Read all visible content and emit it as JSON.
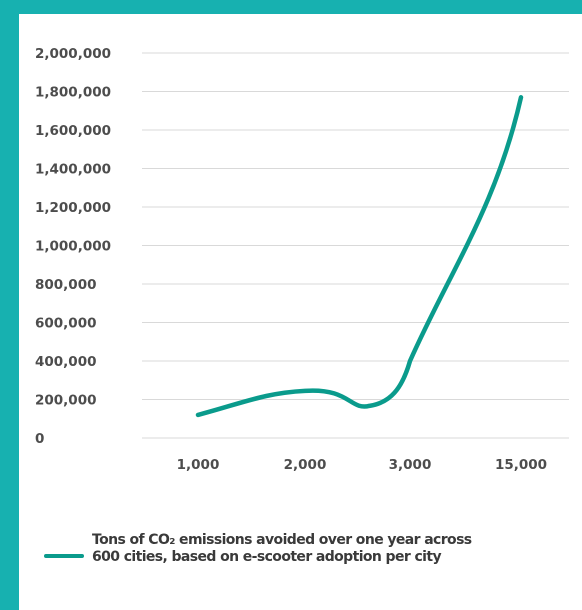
{
  "chart_data": {
    "type": "line",
    "categories": [
      "1,000",
      "2,000",
      "3,000",
      "15,000"
    ],
    "y_ticks": [
      "0",
      "200,000",
      "400,000",
      "600,000",
      "800,000",
      "1,000,000",
      "1,200,000",
      "1,400,000",
      "1,600,000",
      "1,800,000",
      "2,000,000"
    ],
    "ylim": [
      0,
      2000000
    ],
    "grid": true,
    "legend_position": "bottom",
    "series": [
      {
        "name": "Tons of CO₂ emissions avoided over one year across 600 cities, based on e-scooter adoption per city",
        "color": "#0a9b8c",
        "points": [
          {
            "x": "1,000",
            "y": 120000
          },
          {
            "x": "2,000",
            "y": 245000
          },
          {
            "x": "3,000",
            "y": 400000
          },
          {
            "x": "15,000",
            "y": 1770000
          }
        ]
      }
    ]
  },
  "legend": {
    "line1": "Tons of CO₂ emissions avoided over one year across",
    "line2": "600 cities, based on e-scooter adoption per city"
  }
}
